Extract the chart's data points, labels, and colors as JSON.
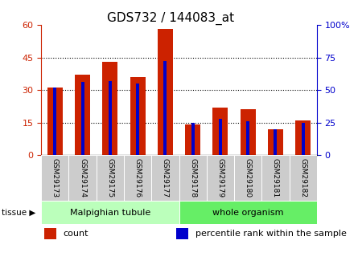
{
  "title": "GDS732 / 144083_at",
  "samples": [
    "GSM29173",
    "GSM29174",
    "GSM29175",
    "GSM29176",
    "GSM29177",
    "GSM29178",
    "GSM29179",
    "GSM29180",
    "GSM29181",
    "GSM29182"
  ],
  "count": [
    31,
    37,
    43,
    36,
    58,
    14,
    22,
    21,
    12,
    16
  ],
  "percentile": [
    52,
    56,
    57,
    55,
    72,
    25,
    28,
    26,
    20,
    25
  ],
  "left_ylim": [
    0,
    60
  ],
  "right_ylim": [
    0,
    100
  ],
  "left_yticks": [
    0,
    15,
    30,
    45,
    60
  ],
  "right_yticks": [
    0,
    25,
    50,
    75,
    100
  ],
  "right_yticklabels": [
    "0",
    "25",
    "50",
    "75",
    "100%"
  ],
  "count_color": "#cc2200",
  "percentile_color": "#0000cc",
  "tissue_groups": [
    {
      "label": "Malpighian tubule",
      "start": 0,
      "end": 5,
      "color": "#bbffbb"
    },
    {
      "label": "whole organism",
      "start": 5,
      "end": 10,
      "color": "#66ee66"
    }
  ],
  "tissue_label": "tissue",
  "legend_items": [
    {
      "label": "count",
      "color": "#cc2200"
    },
    {
      "label": "percentile rank within the sample",
      "color": "#0000cc"
    }
  ],
  "bg_color": "#ffffff",
  "tick_label_bg": "#cccccc",
  "title_fontsize": 11,
  "axis_fontsize": 8,
  "legend_fontsize": 8,
  "grid_yticks": [
    15,
    30,
    45
  ],
  "red_bar_width": 0.55,
  "blue_bar_width": 0.12
}
